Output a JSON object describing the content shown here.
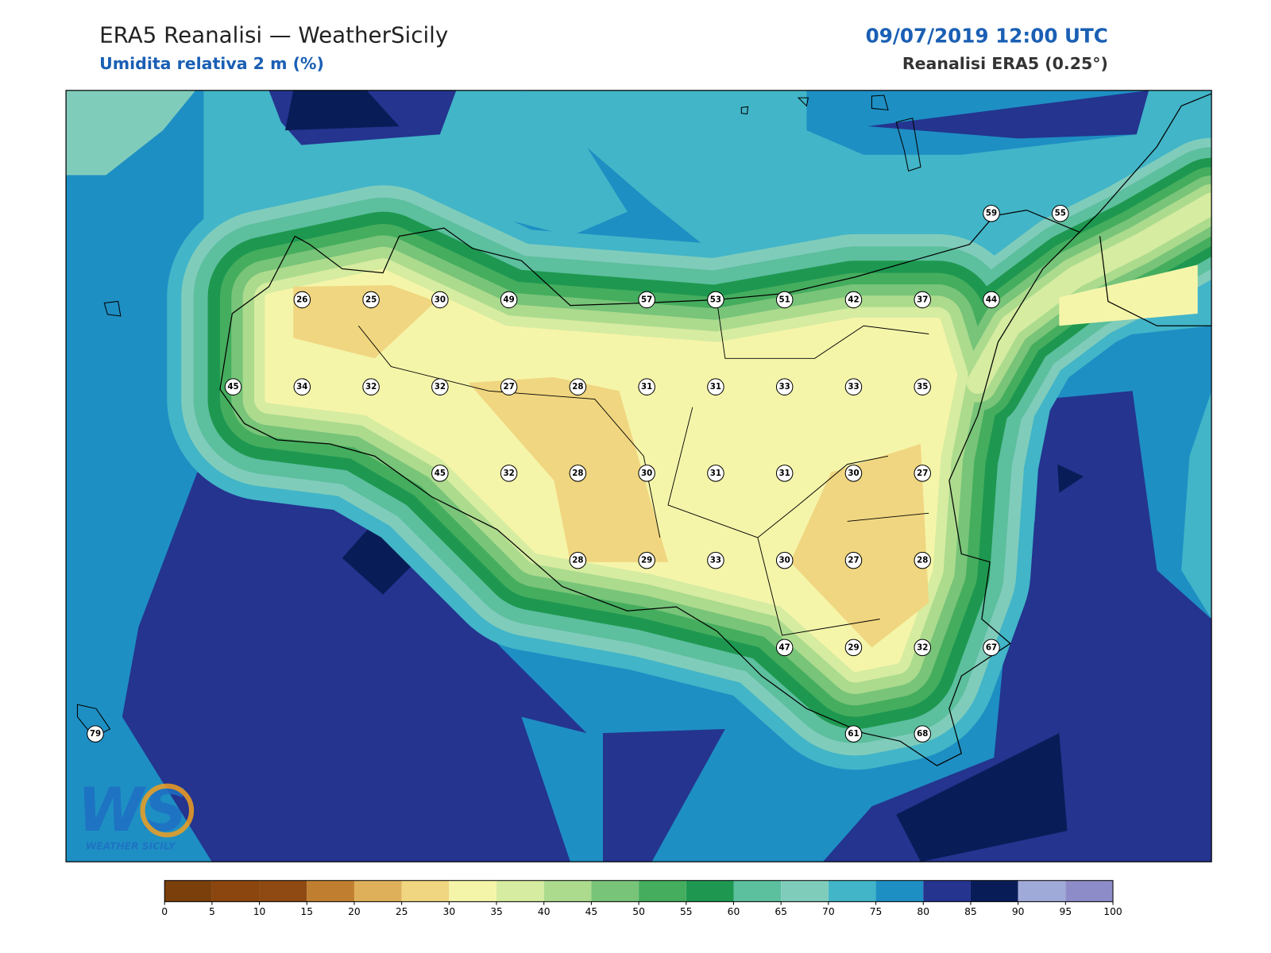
{
  "header": {
    "title": "ERA5 Reanalisi — WeatherSicily",
    "subtitle": "Umidita relativa 2 m (%)",
    "date": "09/07/2019 12:00 UTC",
    "source": "Reanalisi ERA5 (0.25°)"
  },
  "stations": [
    59,
    55,
    26,
    25,
    30,
    49,
    57,
    53,
    51,
    42,
    37,
    44,
    45,
    34,
    32,
    32,
    27,
    28,
    31,
    31,
    33,
    33,
    35,
    45,
    32,
    28,
    30,
    31,
    31,
    30,
    27,
    28,
    29,
    33,
    30,
    27,
    28,
    47,
    29,
    32,
    67,
    79,
    61,
    68
  ],
  "colorbar": {
    "ticks": [
      0,
      5,
      10,
      15,
      20,
      25,
      30,
      35,
      40,
      45,
      50,
      55,
      60,
      65,
      70,
      75,
      80,
      85,
      90,
      95,
      100
    ],
    "colors": [
      "#7a3f0a",
      "#8a460e",
      "#8e4a12",
      "#c07f30",
      "#deb05a",
      "#f0d680",
      "#f5f5aa",
      "#d6eca0",
      "#acdb8e",
      "#78c479",
      "#45ad5e",
      "#1e9850",
      "#5cbf9e",
      "#80ccbb",
      "#42b5c8",
      "#1e8fc3",
      "#24348f",
      "#081d58",
      "#a0aad8",
      "#8e8cc8"
    ]
  },
  "logo": {
    "mark": "WS",
    "text": "WEATHER SICILY"
  }
}
